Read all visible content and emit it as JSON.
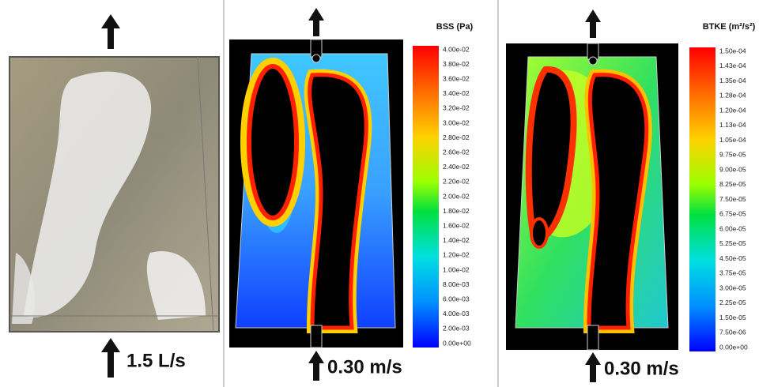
{
  "panels": [
    {
      "caption": "1.5 L/s"
    },
    {
      "caption": "0.30 m/s",
      "colorbar": {
        "title": "BSS (Pa)",
        "labels": [
          "4.00e-02",
          "3.80e-02",
          "3.60e-02",
          "3.40e-02",
          "3.20e-02",
          "3.00e-02",
          "2.80e-02",
          "2.60e-02",
          "2.40e-02",
          "2.20e-02",
          "2.00e-02",
          "1.80e-02",
          "1.60e-02",
          "1.40e-02",
          "1.20e-02",
          "1.00e-02",
          "8.00e-03",
          "6.00e-03",
          "4.00e-03",
          "2.00e-03",
          "0.00e+00"
        ]
      }
    },
    {
      "caption": "0.30 m/s",
      "colorbar": {
        "title": "BTKE (m²/s²)",
        "labels": [
          "1.50e-04",
          "1.43e-04",
          "1.35e-04",
          "1.28e-04",
          "1.20e-04",
          "1.13e-04",
          "1.05e-04",
          "9.75e-05",
          "9.00e-05",
          "8.25e-05",
          "7.50e-05",
          "6.75e-05",
          "6.00e-05",
          "5.25e-05",
          "4.50e-05",
          "3.75e-05",
          "3.00e-05",
          "2.25e-05",
          "1.50e-05",
          "7.50e-06",
          "0.00e+00"
        ]
      }
    }
  ]
}
